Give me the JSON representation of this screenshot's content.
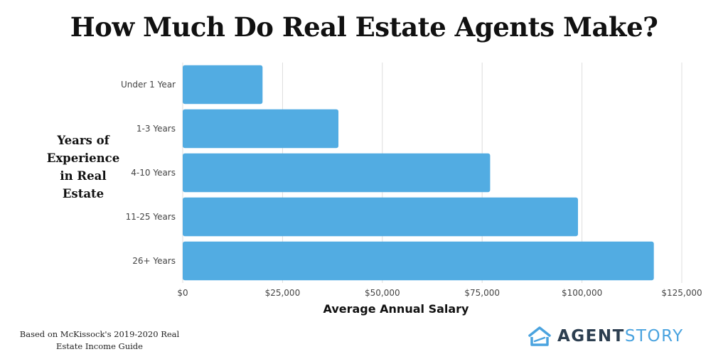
{
  "chart_data": {
    "type": "bar",
    "orientation": "horizontal",
    "title": "How Much Do Real Estate Agents Make?",
    "ylabel": "Years of Experience in Real Estate",
    "xlabel": "Average Annual Salary",
    "categories": [
      "Under 1 Year",
      "1-3 Years",
      "4-10 Years",
      "11-25 Years",
      "26+ Years"
    ],
    "values": [
      20000,
      39000,
      77000,
      99000,
      118000
    ],
    "xlim": [
      0,
      125000
    ],
    "xticks": [
      0,
      25000,
      50000,
      75000,
      100000,
      125000
    ],
    "xtick_labels": [
      "$0",
      "$25,000",
      "$50,000",
      "$75,000",
      "$100,000",
      "$125,000"
    ],
    "grid": "vertical",
    "bar_color": "#52ace2",
    "grid_color": "#dddddd"
  },
  "footer": {
    "source": "Based on McKissock's 2019-2020 Real Estate Income Guide",
    "logo_icon": "house-icon",
    "logo_agent": "AGENT",
    "logo_story": "STORY"
  }
}
